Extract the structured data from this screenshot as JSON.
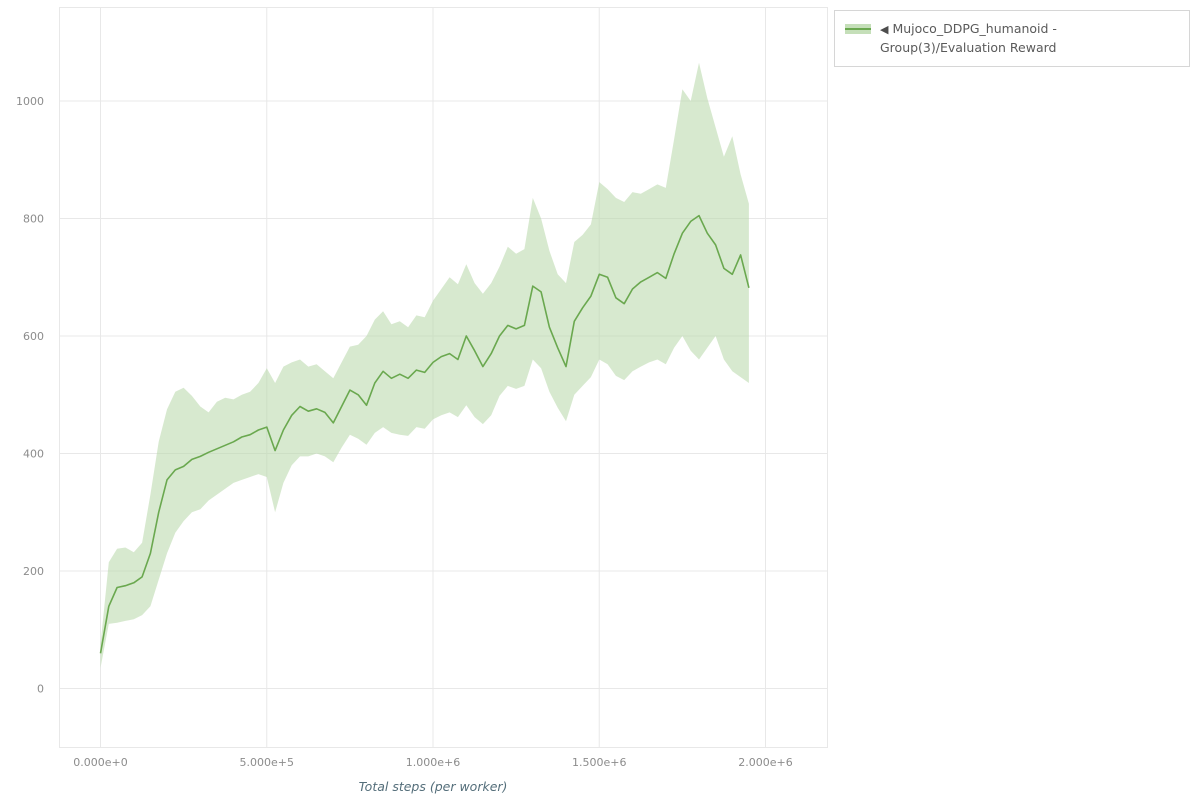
{
  "legend": {
    "toggle_icon": "◀",
    "label": "Mujoco_DDPG_humanoid - Group(3)/Evaluation Reward"
  },
  "chart_data": {
    "type": "line",
    "title": "Mujoco_DDPG_humanoid - Group(3)/Evaluation Reward",
    "xlabel": "Total steps (per worker)",
    "ylabel": "",
    "legend_position": "top-right-outside",
    "grid": true,
    "x_ticks": [
      0,
      500000,
      1000000,
      1500000,
      2000000
    ],
    "x_tick_labels": [
      "0.000e+0",
      "5.000e+5",
      "1.000e+6",
      "1.500e+6",
      "2.000e+6"
    ],
    "y_ticks": [
      0,
      200,
      400,
      600,
      800,
      1000
    ],
    "ylim": [
      -100,
      1160
    ],
    "xlim": [
      -120000,
      2190000
    ],
    "colors": {
      "line": "#6aa84f",
      "band": "#b6d7a8",
      "band_opacity": 0.55,
      "grid": "#e8e8e8",
      "tick_text": "#8c8c8c",
      "axis_title": "#546e7a"
    },
    "series": [
      {
        "name": "Mujoco_DDPG_humanoid - Group(3)/Evaluation Reward",
        "x": [
          0,
          25000,
          50000,
          75000,
          100000,
          125000,
          150000,
          175000,
          200000,
          225000,
          250000,
          275000,
          300000,
          325000,
          350000,
          375000,
          400000,
          425000,
          450000,
          475000,
          500000,
          525000,
          550000,
          575000,
          600000,
          625000,
          650000,
          675000,
          700000,
          725000,
          750000,
          775000,
          800000,
          825000,
          850000,
          875000,
          900000,
          925000,
          950000,
          975000,
          1000000,
          1025000,
          1050000,
          1075000,
          1100000,
          1125000,
          1150000,
          1175000,
          1200000,
          1225000,
          1250000,
          1275000,
          1300000,
          1325000,
          1350000,
          1375000,
          1400000,
          1425000,
          1450000,
          1475000,
          1500000,
          1525000,
          1550000,
          1575000,
          1600000,
          1625000,
          1650000,
          1675000,
          1700000,
          1725000,
          1750000,
          1775000,
          1800000,
          1825000,
          1850000,
          1875000,
          1900000,
          1925000,
          1950000
        ],
        "mean": [
          60,
          140,
          172,
          175,
          180,
          190,
          230,
          300,
          355,
          372,
          378,
          390,
          395,
          402,
          408,
          414,
          420,
          428,
          432,
          440,
          445,
          405,
          440,
          465,
          480,
          472,
          476,
          470,
          452,
          480,
          508,
          500,
          482,
          520,
          540,
          528,
          535,
          528,
          542,
          538,
          555,
          565,
          570,
          560,
          600,
          575,
          548,
          570,
          600,
          618,
          612,
          618,
          685,
          675,
          615,
          580,
          548,
          625,
          648,
          668,
          705,
          700,
          665,
          655,
          680,
          692,
          700,
          708,
          698,
          740,
          775,
          795,
          805,
          775,
          755,
          715,
          705,
          738,
          682
        ],
        "lower": [
          35,
          110,
          112,
          115,
          118,
          125,
          140,
          185,
          230,
          265,
          285,
          300,
          305,
          320,
          330,
          340,
          350,
          355,
          360,
          365,
          360,
          300,
          350,
          380,
          395,
          395,
          400,
          395,
          385,
          410,
          432,
          425,
          415,
          435,
          445,
          435,
          432,
          430,
          445,
          442,
          458,
          465,
          470,
          462,
          482,
          462,
          450,
          465,
          498,
          515,
          510,
          515,
          560,
          545,
          505,
          478,
          455,
          500,
          515,
          530,
          560,
          552,
          532,
          525,
          540,
          548,
          555,
          560,
          552,
          580,
          600,
          575,
          560,
          580,
          600,
          560,
          540,
          530,
          520
        ],
        "upper": [
          75,
          215,
          238,
          240,
          232,
          248,
          330,
          420,
          475,
          505,
          512,
          498,
          480,
          470,
          488,
          495,
          492,
          500,
          505,
          520,
          545,
          520,
          548,
          555,
          560,
          548,
          552,
          540,
          528,
          555,
          582,
          585,
          600,
          628,
          642,
          620,
          625,
          615,
          635,
          632,
          660,
          680,
          700,
          688,
          722,
          690,
          672,
          690,
          718,
          752,
          740,
          748,
          835,
          800,
          745,
          705,
          690,
          760,
          772,
          790,
          862,
          850,
          835,
          828,
          845,
          842,
          850,
          858,
          852,
          935,
          1020,
          1000,
          1065,
          1005,
          955,
          905,
          940,
          875,
          825
        ]
      }
    ]
  }
}
